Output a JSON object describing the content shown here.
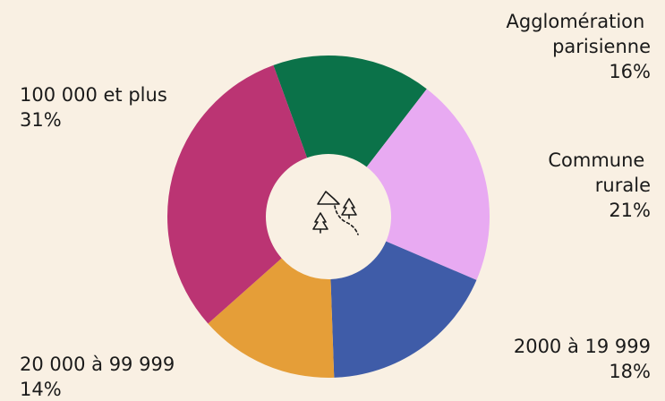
{
  "chart_data": {
    "type": "donut",
    "categories": [
      "Agglomération parisienne",
      "Commune rurale",
      "2000 à 19 999",
      "20 000 à 99 999",
      "100 000 et plus"
    ],
    "values": [
      16,
      21,
      18,
      14,
      31
    ],
    "value_labels": [
      "16%",
      "21%",
      "18%",
      "14%",
      "31%"
    ],
    "colors": [
      "#0b7249",
      "#e8aaf2",
      "#3f5ca8",
      "#e59e38",
      "#bb3473"
    ]
  }
}
